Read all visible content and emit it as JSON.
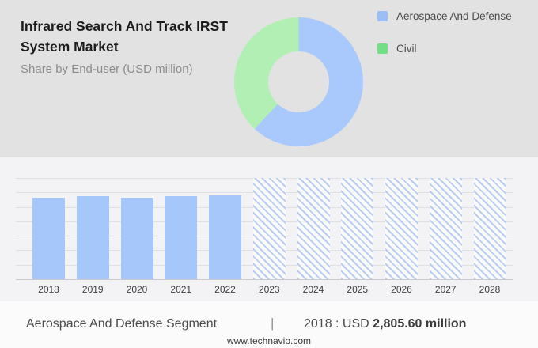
{
  "header": {
    "title": "Infrared Search And Track IRST System Market",
    "subtitle": "Share by End-user (USD million)"
  },
  "legend": {
    "items": [
      {
        "label": "Aerospace And Defense",
        "color": "#9dbdf7"
      },
      {
        "label": "Civil",
        "color": "#72df86"
      }
    ]
  },
  "colors": {
    "top_background": "#e2e2e2",
    "chart_background": "#f3f3f5",
    "bar_blue": "#a5c7fa",
    "hatch_blue": "#b9cdf1",
    "donut_blue": "#a9c8fb",
    "donut_green": "#b2efb4",
    "gridline": "#e0e0e3"
  },
  "chart_data": [
    {
      "type": "pie",
      "donut": true,
      "title": "Share by End-user (USD million)",
      "labels": [
        "Aerospace And Defense",
        "Civil"
      ],
      "values_pct": [
        62,
        38
      ],
      "colors": [
        "#a9c8fb",
        "#b2efb4"
      ],
      "note": "shares estimated from arc angles; no numeric labels shown",
      "legend_position": "right"
    },
    {
      "type": "bar",
      "title": "Aerospace And Defense segment size by year",
      "ylabel": "USD million",
      "categories": [
        "2018",
        "2019",
        "2020",
        "2021",
        "2022",
        "2023",
        "2024",
        "2025",
        "2026",
        "2027",
        "2028"
      ],
      "columns": [
        {
          "year": "2018",
          "value": 2805.6,
          "kind": "actual"
        },
        {
          "year": "2019",
          "value": 2860,
          "kind": "actual"
        },
        {
          "year": "2020",
          "value": 2805,
          "kind": "actual"
        },
        {
          "year": "2021",
          "value": 2850,
          "kind": "actual"
        },
        {
          "year": "2022",
          "value": 2895,
          "kind": "actual"
        },
        {
          "year": "2023",
          "value": null,
          "kind": "forecast"
        },
        {
          "year": "2024",
          "value": null,
          "kind": "forecast"
        },
        {
          "year": "2025",
          "value": null,
          "kind": "forecast"
        },
        {
          "year": "2026",
          "value": null,
          "kind": "forecast"
        },
        {
          "year": "2027",
          "value": null,
          "kind": "forecast"
        },
        {
          "year": "2028",
          "value": null,
          "kind": "forecast"
        }
      ],
      "grid": true,
      "gridline_count": 8,
      "note": "no y-axis tick labels shown; 2018 value known from caption, other actual values estimated from bar heights; forecast years masked with diagonal hatching"
    }
  ],
  "caption": {
    "segment": "Aerospace And Defense Segment",
    "divider": "|",
    "prefix": "2018 : USD",
    "value": "2,805.60 million"
  },
  "footer": {
    "url": "www.technavio.com"
  }
}
